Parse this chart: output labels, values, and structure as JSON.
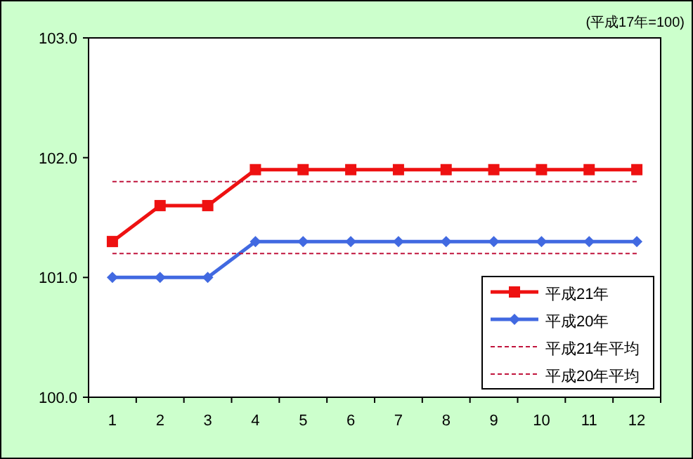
{
  "chart_data": {
    "type": "line",
    "annotations": [
      "(平成17年=100)"
    ],
    "categories": [
      "1",
      "2",
      "3",
      "4",
      "5",
      "6",
      "7",
      "8",
      "9",
      "10",
      "11",
      "12"
    ],
    "series": [
      {
        "name": "平成21年",
        "color": "#ee1111",
        "marker": "square",
        "line_style": "solid",
        "values": [
          101.3,
          101.6,
          101.6,
          101.9,
          101.9,
          101.9,
          101.9,
          101.9,
          101.9,
          101.9,
          101.9,
          101.9
        ]
      },
      {
        "name": "平成20年",
        "color": "#4169e1",
        "marker": "diamond",
        "line_style": "solid",
        "values": [
          101.0,
          101.0,
          101.0,
          101.3,
          101.3,
          101.3,
          101.3,
          101.3,
          101.3,
          101.3,
          101.3,
          101.3
        ]
      },
      {
        "name": "平成21年平均",
        "color": "#c0143c",
        "marker": "none",
        "line_style": "dashed",
        "values": [
          101.8,
          101.8,
          101.8,
          101.8,
          101.8,
          101.8,
          101.8,
          101.8,
          101.8,
          101.8,
          101.8,
          101.8
        ]
      },
      {
        "name": "平成20年平均",
        "color": "#c0143c",
        "marker": "none",
        "line_style": "dashed",
        "values": [
          101.2,
          101.2,
          101.2,
          101.2,
          101.2,
          101.2,
          101.2,
          101.2,
          101.2,
          101.2,
          101.2,
          101.2
        ]
      }
    ],
    "ylim": [
      100,
      103
    ],
    "yticks": [
      {
        "value": 100,
        "label": "100.0"
      },
      {
        "value": 101,
        "label": "101.0"
      },
      {
        "value": 102,
        "label": "102.0"
      },
      {
        "value": 103,
        "label": "103.0"
      }
    ],
    "grid": false,
    "legend": "bottom right"
  }
}
